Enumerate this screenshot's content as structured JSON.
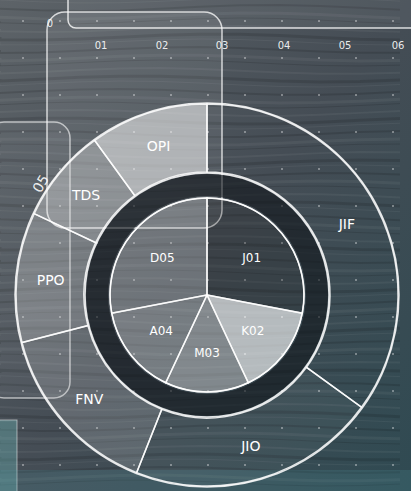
{
  "chart_data": {
    "type": "sunburst",
    "inner": {
      "categories": [
        "J01",
        "K02",
        "M03",
        "A04",
        "D05"
      ],
      "values": [
        28,
        15,
        14,
        15,
        28
      ],
      "colors": [
        "rgba(30,30,30,0.25)",
        "rgba(255,255,255,0.62)",
        "rgba(210,210,210,0.45)",
        "rgba(215,215,215,0.35)",
        "rgba(205,205,205,0.3)"
      ]
    },
    "outer": {
      "categories": [
        "JIF",
        "JIO",
        "FNV",
        "PPO",
        "TDS",
        "OPI"
      ],
      "values": [
        35,
        21,
        15,
        11,
        8,
        10
      ],
      "colors": [
        "rgba(255,255,255,0)",
        "rgba(255,255,255,0.04)",
        "rgba(220,220,220,0.2)",
        "rgba(220,220,220,0.3)",
        "rgba(225,225,225,0.38)",
        "rgba(240,240,240,0.58)"
      ]
    },
    "annotations": [
      "0",
      "01",
      "02",
      "03",
      "04",
      "05",
      "06",
      "05"
    ]
  }
}
